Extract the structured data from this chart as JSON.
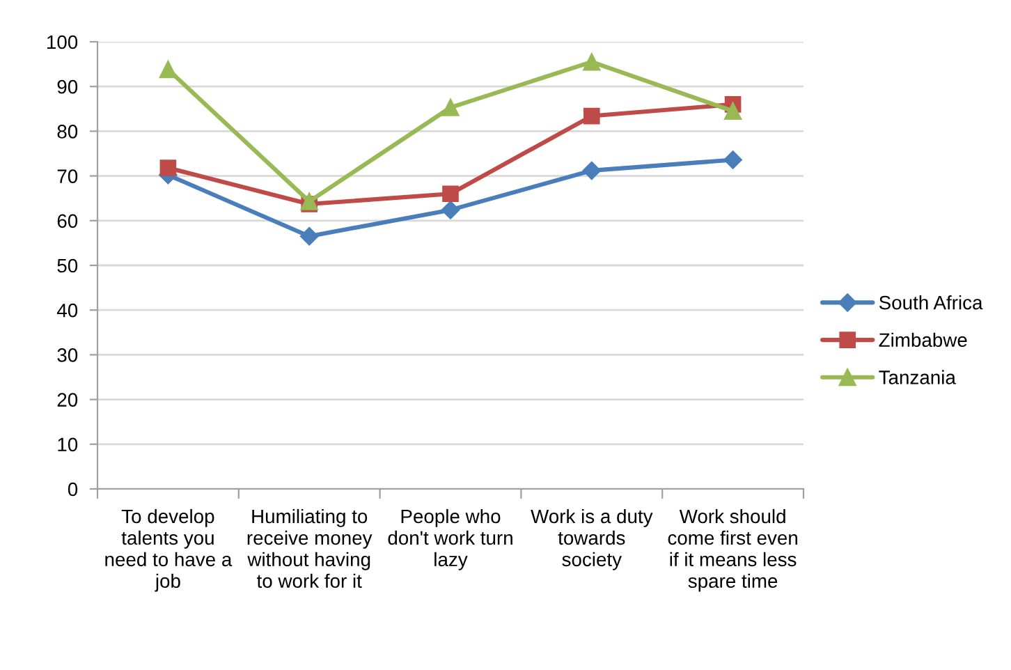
{
  "chart_data": {
    "type": "line",
    "categories": [
      "To develop talents you need to have a job",
      "Humiliating to receive money without having to work for it",
      "People who don't work turn lazy",
      "Work is a duty towards society",
      "Work should come first even if it means less spare time"
    ],
    "series": [
      {
        "name": "South Africa",
        "color": "#4a7ebb",
        "marker": "diamond",
        "values": [
          70.2,
          56.5,
          62.4,
          71.2,
          73.6
        ]
      },
      {
        "name": "Zimbabwe",
        "color": "#be4b48",
        "marker": "square",
        "values": [
          71.8,
          63.7,
          66.0,
          83.4,
          86.0
        ]
      },
      {
        "name": "Tanzania",
        "color": "#98b954",
        "marker": "triangle",
        "values": [
          93.8,
          64.3,
          85.3,
          95.5,
          84.5
        ]
      }
    ],
    "ylim": [
      0,
      100
    ],
    "yticks": [
      0,
      10,
      20,
      30,
      40,
      50,
      60,
      70,
      80,
      90,
      100
    ],
    "grid": "y",
    "legend": "right",
    "line_style": "solid"
  }
}
